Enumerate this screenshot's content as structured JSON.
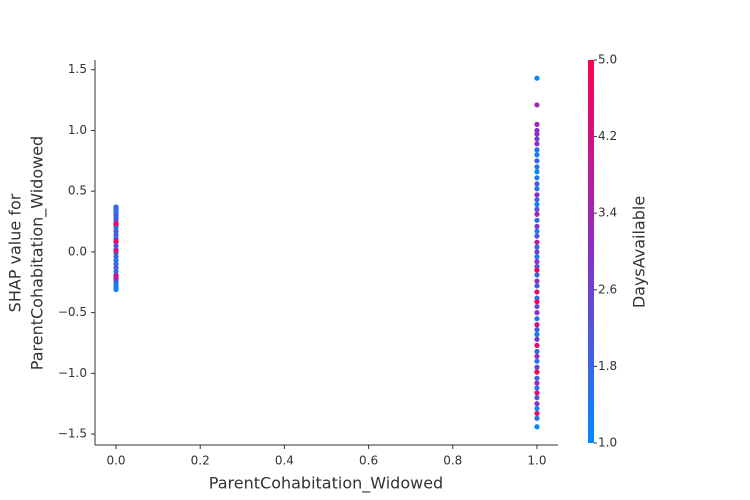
{
  "chart_data": {
    "type": "scatter",
    "xlabel": "ParentCohabitation_Widowed",
    "ylabel": [
      "SHAP value for",
      "ParentCohabitation_Widowed"
    ],
    "colorbar_label": "DaysAvailable",
    "colormap": [
      "#008bfb",
      "#8a2fc8",
      "#ff0052"
    ],
    "clim": [
      1,
      5
    ],
    "cticks": [
      {
        "value": 1,
        "label": "1.0"
      },
      1.8,
      2.6,
      3.4,
      4.2,
      {
        "value": 5,
        "label": "5.0"
      }
    ],
    "xlim": [
      -0.05,
      1.05
    ],
    "xticks": [
      {
        "value": 0,
        "label": "0.0"
      },
      0.2,
      0.4,
      0.6,
      0.8,
      {
        "value": 1,
        "label": "1.0"
      }
    ],
    "ylim": [
      -1.59,
      1.58
    ],
    "yticks": [
      {
        "value": -1.5,
        "label": "−1.5"
      },
      {
        "value": -1,
        "label": "−1.0"
      },
      {
        "value": -0.5,
        "label": "−0.5"
      },
      {
        "value": 0,
        "label": "0.0"
      },
      0.5,
      {
        "value": 1,
        "label": "1.0"
      },
      1.5
    ],
    "series": [
      {
        "name": "DaysAvailable",
        "x": [
          0,
          0,
          0,
          0,
          0,
          0,
          0,
          0,
          0,
          0,
          0,
          0,
          0,
          0,
          0,
          0,
          0,
          0,
          0,
          0,
          0,
          0,
          0,
          0,
          0,
          0,
          0,
          0,
          0,
          0,
          0,
          0,
          0,
          0,
          0,
          0,
          1,
          1,
          1,
          1,
          1,
          1,
          1,
          1,
          1,
          1,
          1,
          1,
          1,
          1,
          1,
          1,
          1,
          1,
          1,
          1,
          1,
          1,
          1,
          1,
          1,
          1,
          1,
          1,
          1,
          1,
          1,
          1,
          1,
          1,
          1,
          1,
          1,
          1,
          1,
          1,
          1,
          1,
          1,
          1,
          1,
          1,
          1,
          1,
          1,
          1,
          1,
          1,
          1,
          1,
          1,
          1,
          1,
          1,
          1,
          1
        ],
        "values": [
          0.37,
          0.36,
          0.35,
          0.34,
          0.33,
          0.32,
          0.3,
          0.28,
          0.26,
          0.24,
          0.22,
          0.2,
          0.17,
          0.14,
          0.11,
          0.08,
          0.05,
          0.02,
          -0.01,
          -0.04,
          -0.07,
          -0.1,
          -0.13,
          -0.16,
          -0.19,
          -0.21,
          -0.23,
          -0.25,
          -0.27,
          -0.29,
          -0.31,
          0.23,
          0.09,
          0.01,
          -0.2,
          -0.22,
          1.43,
          1.21,
          1.05,
          1.0,
          0.97,
          0.93,
          0.89,
          0.84,
          0.8,
          0.75,
          0.7,
          0.66,
          0.61,
          0.56,
          0.52,
          0.47,
          0.43,
          0.39,
          0.35,
          0.31,
          0.26,
          0.21,
          0.17,
          0.13,
          0.08,
          0.04,
          0.0,
          -0.04,
          -0.08,
          -0.12,
          -0.15,
          -0.19,
          -0.24,
          -0.28,
          -0.33,
          -0.38,
          -0.41,
          -0.45,
          -0.5,
          -0.55,
          -0.6,
          -0.64,
          -0.68,
          -0.72,
          -0.77,
          -0.82,
          -0.86,
          -0.9,
          -0.95,
          -0.99,
          -1.04,
          -1.08,
          -1.12,
          -1.16,
          -1.2,
          -1.25,
          -1.29,
          -1.33,
          -1.37,
          -1.44
        ],
        "days_available": [
          1.8,
          1.5,
          2.0,
          1.7,
          1.9,
          1.4,
          2.2,
          1.6,
          2.4,
          1.8,
          2.0,
          1.3,
          2.2,
          1.9,
          1.6,
          1.8,
          2.5,
          1.5,
          1.7,
          2.0,
          1.4,
          1.8,
          2.1,
          1.6,
          2.3,
          1.9,
          1.5,
          1.7,
          1.3,
          1.4,
          1.2,
          5.0,
          4.8,
          4.5,
          4.6,
          3.5,
          1.0,
          3.3,
          3.3,
          3.0,
          3.2,
          2.6,
          3.0,
          1.5,
          1.2,
          2.0,
          1.5,
          1.1,
          1.3,
          2.0,
          1.4,
          3.0,
          1.8,
          1.2,
          2.4,
          3.5,
          1.6,
          2.8,
          1.3,
          2.2,
          3.8,
          1.9,
          2.6,
          1.4,
          3.0,
          2.2,
          4.8,
          1.7,
          3.2,
          2.0,
          4.5,
          1.5,
          5.0,
          2.4,
          3.1,
          1.6,
          4.2,
          2.0,
          1.3,
          2.8,
          4.6,
          1.8,
          3.5,
          1.4,
          2.6,
          5.0,
          1.9,
          3.3,
          1.5,
          4.4,
          2.2,
          3.0,
          1.2,
          4.8,
          1.6,
          1.1
        ]
      }
    ]
  }
}
